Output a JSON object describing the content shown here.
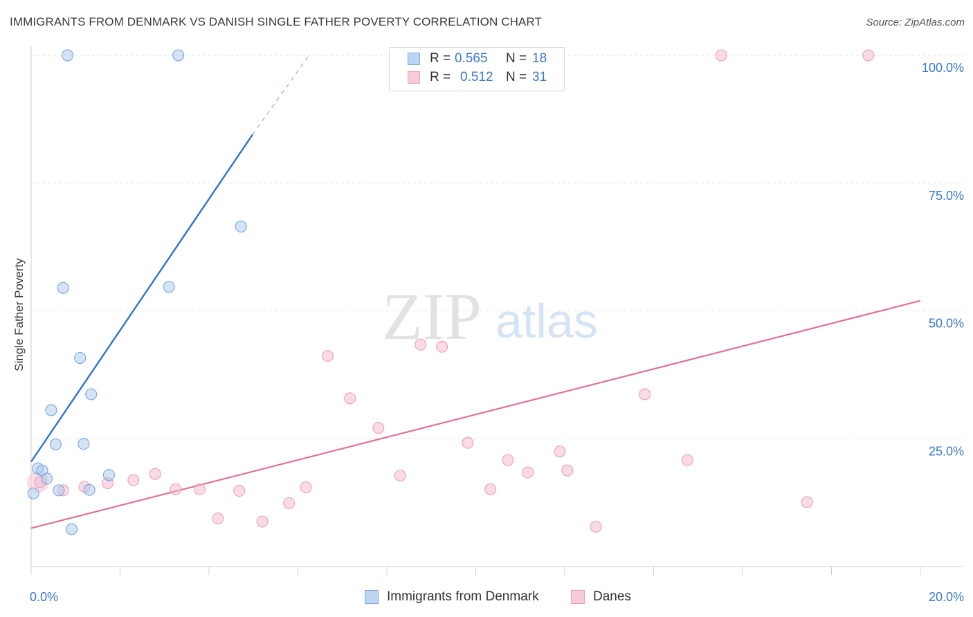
{
  "title": "IMMIGRANTS FROM DENMARK VS DANISH SINGLE FATHER POVERTY CORRELATION CHART",
  "source": "Source: ZipAtlas.com",
  "watermark": {
    "zip": "ZIP",
    "atlas": "atlas"
  },
  "legend": {
    "r_label": "R =",
    "n_label": "N =",
    "blue": {
      "r": "0.565",
      "n": "18"
    },
    "pink": {
      "r": "0.512",
      "n": "31"
    }
  },
  "chart_data": {
    "type": "scatter",
    "title": "IMMIGRANTS FROM DENMARK VS DANISH SINGLE FATHER POVERTY CORRELATION CHART",
    "xlabel": "",
    "ylabel": "Single Father Poverty",
    "xlim": [
      0,
      20
    ],
    "ylim": [
      0,
      102
    ],
    "x_tick_labels": [
      "0.0%",
      "20.0%"
    ],
    "y_ticks": [
      25,
      50,
      75,
      100
    ],
    "y_tick_labels": [
      "25.0%",
      "50.0%",
      "75.0%",
      "100.0%"
    ],
    "grid": "horizontal dashed",
    "legend_position": "top-center",
    "colors": {
      "blue": "#a9c8ee",
      "blue_line": "#2f73c9",
      "pink": "#f5b8cb",
      "pink_line": "#e0709a"
    },
    "series": [
      {
        "name": "Immigrants from Denmark",
        "color": "blue",
        "points": [
          [
            0.82,
            100
          ],
          [
            3.31,
            100
          ],
          [
            4.72,
            66.5
          ],
          [
            0.72,
            54.5
          ],
          [
            3.1,
            54.7
          ],
          [
            1.1,
            40.8
          ],
          [
            1.35,
            33.7
          ],
          [
            0.45,
            30.6
          ],
          [
            0.55,
            23.9
          ],
          [
            1.18,
            24.0
          ],
          [
            0.15,
            19.2
          ],
          [
            0.25,
            18.8
          ],
          [
            0.35,
            17.2
          ],
          [
            1.75,
            17.9
          ],
          [
            0.05,
            14.3
          ],
          [
            0.62,
            14.9
          ],
          [
            1.31,
            15.0
          ],
          [
            0.91,
            7.3
          ]
        ],
        "trend": {
          "x0": 0.0,
          "y0": 20.5,
          "x1": 4.98,
          "y1": 84.5,
          "dash_to_x": 6.25,
          "dash_to_y": 100
        }
      },
      {
        "name": "Danes",
        "color": "pink",
        "points": [
          [
            15.52,
            100
          ],
          [
            18.83,
            100
          ],
          [
            6.67,
            41.2
          ],
          [
            8.76,
            43.4
          ],
          [
            9.24,
            43.0
          ],
          [
            7.17,
            32.9
          ],
          [
            7.81,
            27.1
          ],
          [
            13.8,
            33.7
          ],
          [
            9.82,
            24.2
          ],
          [
            11.89,
            22.5
          ],
          [
            10.72,
            20.8
          ],
          [
            14.76,
            20.8
          ],
          [
            11.17,
            18.4
          ],
          [
            12.06,
            18.8
          ],
          [
            8.3,
            17.8
          ],
          [
            2.79,
            18.1
          ],
          [
            2.3,
            16.9
          ],
          [
            1.72,
            16.3
          ],
          [
            1.2,
            15.6
          ],
          [
            0.2,
            16.5
          ],
          [
            0.72,
            14.9
          ],
          [
            3.25,
            15.1
          ],
          [
            3.79,
            15.1
          ],
          [
            4.68,
            14.8
          ],
          [
            6.18,
            15.5
          ],
          [
            10.33,
            15.1
          ],
          [
            5.8,
            12.4
          ],
          [
            4.2,
            9.4
          ],
          [
            5.2,
            8.8
          ],
          [
            12.7,
            7.8
          ],
          [
            17.45,
            12.6
          ]
        ],
        "trend": {
          "x0": 0.0,
          "y0": 7.5,
          "x1": 20.0,
          "y1": 52.0
        }
      }
    ]
  }
}
